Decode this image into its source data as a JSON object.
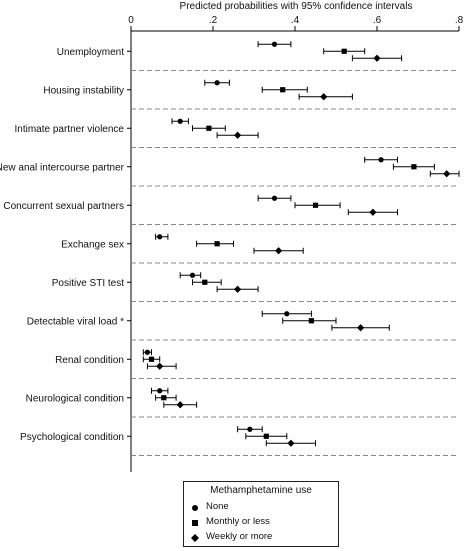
{
  "chart_data": {
    "type": "forest",
    "title": "Predicted probabilities with 95% confidence intervals",
    "xlim": [
      0,
      0.8
    ],
    "xticks": [
      {
        "value": 0,
        "label": "0"
      },
      {
        "value": 0.2,
        "label": ".2"
      },
      {
        "value": 0.4,
        "label": ".4"
      },
      {
        "value": 0.6,
        "label": ".6"
      },
      {
        "value": 0.8,
        "label": ".8"
      }
    ],
    "grid": false,
    "legend_position": "bottom",
    "legend_title": "Methamphetamine use",
    "series": [
      {
        "name": "None",
        "marker": "circle"
      },
      {
        "name": "Monthly or less",
        "marker": "square"
      },
      {
        "name": "Weekly or more",
        "marker": "diamond"
      }
    ],
    "categories": [
      {
        "label": "Unemployment",
        "points": [
          {
            "est": 0.35,
            "lo": 0.31,
            "hi": 0.39
          },
          {
            "est": 0.52,
            "lo": 0.47,
            "hi": 0.57
          },
          {
            "est": 0.6,
            "lo": 0.54,
            "hi": 0.66
          }
        ]
      },
      {
        "label": "Housing instability",
        "points": [
          {
            "est": 0.21,
            "lo": 0.18,
            "hi": 0.24
          },
          {
            "est": 0.37,
            "lo": 0.32,
            "hi": 0.43
          },
          {
            "est": 0.47,
            "lo": 0.41,
            "hi": 0.54
          }
        ]
      },
      {
        "label": "Intimate partner violence",
        "points": [
          {
            "est": 0.12,
            "lo": 0.1,
            "hi": 0.14
          },
          {
            "est": 0.19,
            "lo": 0.15,
            "hi": 0.23
          },
          {
            "est": 0.26,
            "lo": 0.21,
            "hi": 0.31
          }
        ]
      },
      {
        "label": "New anal intercourse partner",
        "points": [
          {
            "est": 0.61,
            "lo": 0.57,
            "hi": 0.65
          },
          {
            "est": 0.69,
            "lo": 0.64,
            "hi": 0.74
          },
          {
            "est": 0.77,
            "lo": 0.73,
            "hi": 0.8
          }
        ]
      },
      {
        "label": "Concurrent sexual partners",
        "points": [
          {
            "est": 0.35,
            "lo": 0.31,
            "hi": 0.39
          },
          {
            "est": 0.45,
            "lo": 0.4,
            "hi": 0.51
          },
          {
            "est": 0.59,
            "lo": 0.53,
            "hi": 0.65
          }
        ]
      },
      {
        "label": "Exchange sex",
        "points": [
          {
            "est": 0.07,
            "lo": 0.06,
            "hi": 0.09
          },
          {
            "est": 0.21,
            "lo": 0.16,
            "hi": 0.25
          },
          {
            "est": 0.36,
            "lo": 0.3,
            "hi": 0.42
          }
        ]
      },
      {
        "label": "Positive STI test",
        "points": [
          {
            "est": 0.15,
            "lo": 0.12,
            "hi": 0.17
          },
          {
            "est": 0.18,
            "lo": 0.15,
            "hi": 0.22
          },
          {
            "est": 0.26,
            "lo": 0.21,
            "hi": 0.31
          }
        ]
      },
      {
        "label": "Detectable viral load *",
        "points": [
          {
            "est": 0.38,
            "lo": 0.32,
            "hi": 0.44
          },
          {
            "est": 0.44,
            "lo": 0.37,
            "hi": 0.5
          },
          {
            "est": 0.56,
            "lo": 0.49,
            "hi": 0.63
          }
        ]
      },
      {
        "label": "Renal condition",
        "points": [
          {
            "est": 0.04,
            "lo": 0.03,
            "hi": 0.05
          },
          {
            "est": 0.05,
            "lo": 0.03,
            "hi": 0.07
          },
          {
            "est": 0.07,
            "lo": 0.04,
            "hi": 0.11
          }
        ]
      },
      {
        "label": "Neurological condition",
        "points": [
          {
            "est": 0.07,
            "lo": 0.05,
            "hi": 0.09
          },
          {
            "est": 0.08,
            "lo": 0.06,
            "hi": 0.11
          },
          {
            "est": 0.12,
            "lo": 0.08,
            "hi": 0.16
          }
        ]
      },
      {
        "label": "Psychological condition",
        "points": [
          {
            "est": 0.29,
            "lo": 0.26,
            "hi": 0.32
          },
          {
            "est": 0.33,
            "lo": 0.28,
            "hi": 0.38
          },
          {
            "est": 0.39,
            "lo": 0.33,
            "hi": 0.45
          }
        ]
      }
    ]
  }
}
